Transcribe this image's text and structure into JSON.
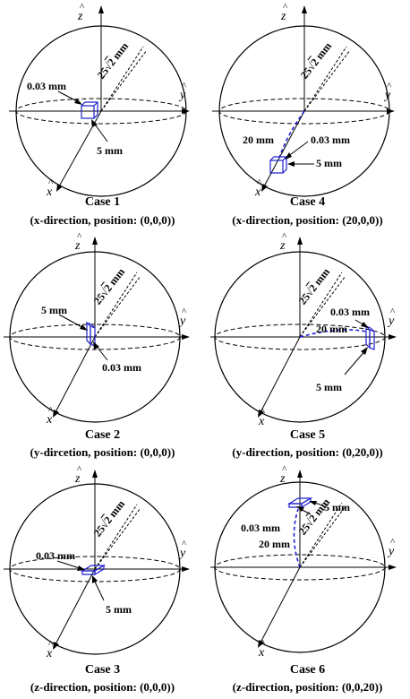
{
  "axes": {
    "x": "x",
    "y": "y",
    "z": "z",
    "hat": "^"
  },
  "radius_label": {
    "prefix": "25",
    "root": "√",
    "radicand": "2",
    "unit": "mm"
  },
  "dim": {
    "thickness": "0.03 mm",
    "side": "5 mm",
    "offset": "20 mm"
  },
  "colors": {
    "outline": "#000000",
    "cube": "#1f1fcf",
    "path": "#1f1fcf"
  },
  "panels": [
    {
      "title": "Case 1",
      "subtitle": "(x-direction, position: (0,0,0))"
    },
    {
      "title": "Case 4",
      "subtitle": "(x-direction, position: (20,0,0))"
    },
    {
      "title": "Case 2",
      "subtitle": "(y-dircetion, position: (0,0,0))"
    },
    {
      "title": "Case 5",
      "subtitle": "(y-direction, position: (0,20,0))"
    },
    {
      "title": "Case 3",
      "subtitle": "(z-direction, position: (0,0,0))"
    },
    {
      "title": "Case 6",
      "subtitle": "(z-direction, position: (0,0,20))"
    }
  ]
}
